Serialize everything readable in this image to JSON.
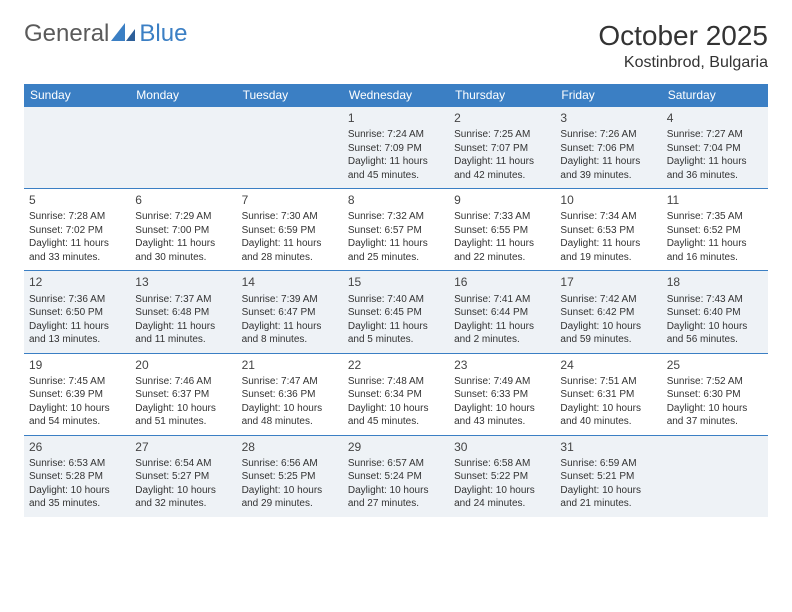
{
  "brand": {
    "text_general": "General",
    "text_blue": "Blue",
    "colors": {
      "general": "#5a5a5a",
      "blue": "#3b7fc4"
    }
  },
  "title": "October 2025",
  "location": "Kostinbrod, Bulgaria",
  "styling": {
    "header_bg": "#3b7fc4",
    "header_text": "#ffffff",
    "alt_row_bg": "#eef2f6",
    "cell_border": "#3b7fc4",
    "body_text": "#333333",
    "title_fontsize": 28,
    "subtitle_fontsize": 16,
    "day_header_fontsize": 12,
    "cell_fontsize": 10,
    "daynum_fontsize": 12
  },
  "day_headers": [
    "Sunday",
    "Monday",
    "Tuesday",
    "Wednesday",
    "Thursday",
    "Friday",
    "Saturday"
  ],
  "weeks": [
    [
      null,
      null,
      null,
      {
        "n": "1",
        "sr": "Sunrise: 7:24 AM",
        "ss": "Sunset: 7:09 PM",
        "dl1": "Daylight: 11 hours",
        "dl2": "and 45 minutes."
      },
      {
        "n": "2",
        "sr": "Sunrise: 7:25 AM",
        "ss": "Sunset: 7:07 PM",
        "dl1": "Daylight: 11 hours",
        "dl2": "and 42 minutes."
      },
      {
        "n": "3",
        "sr": "Sunrise: 7:26 AM",
        "ss": "Sunset: 7:06 PM",
        "dl1": "Daylight: 11 hours",
        "dl2": "and 39 minutes."
      },
      {
        "n": "4",
        "sr": "Sunrise: 7:27 AM",
        "ss": "Sunset: 7:04 PM",
        "dl1": "Daylight: 11 hours",
        "dl2": "and 36 minutes."
      }
    ],
    [
      {
        "n": "5",
        "sr": "Sunrise: 7:28 AM",
        "ss": "Sunset: 7:02 PM",
        "dl1": "Daylight: 11 hours",
        "dl2": "and 33 minutes."
      },
      {
        "n": "6",
        "sr": "Sunrise: 7:29 AM",
        "ss": "Sunset: 7:00 PM",
        "dl1": "Daylight: 11 hours",
        "dl2": "and 30 minutes."
      },
      {
        "n": "7",
        "sr": "Sunrise: 7:30 AM",
        "ss": "Sunset: 6:59 PM",
        "dl1": "Daylight: 11 hours",
        "dl2": "and 28 minutes."
      },
      {
        "n": "8",
        "sr": "Sunrise: 7:32 AM",
        "ss": "Sunset: 6:57 PM",
        "dl1": "Daylight: 11 hours",
        "dl2": "and 25 minutes."
      },
      {
        "n": "9",
        "sr": "Sunrise: 7:33 AM",
        "ss": "Sunset: 6:55 PM",
        "dl1": "Daylight: 11 hours",
        "dl2": "and 22 minutes."
      },
      {
        "n": "10",
        "sr": "Sunrise: 7:34 AM",
        "ss": "Sunset: 6:53 PM",
        "dl1": "Daylight: 11 hours",
        "dl2": "and 19 minutes."
      },
      {
        "n": "11",
        "sr": "Sunrise: 7:35 AM",
        "ss": "Sunset: 6:52 PM",
        "dl1": "Daylight: 11 hours",
        "dl2": "and 16 minutes."
      }
    ],
    [
      {
        "n": "12",
        "sr": "Sunrise: 7:36 AM",
        "ss": "Sunset: 6:50 PM",
        "dl1": "Daylight: 11 hours",
        "dl2": "and 13 minutes."
      },
      {
        "n": "13",
        "sr": "Sunrise: 7:37 AM",
        "ss": "Sunset: 6:48 PM",
        "dl1": "Daylight: 11 hours",
        "dl2": "and 11 minutes."
      },
      {
        "n": "14",
        "sr": "Sunrise: 7:39 AM",
        "ss": "Sunset: 6:47 PM",
        "dl1": "Daylight: 11 hours",
        "dl2": "and 8 minutes."
      },
      {
        "n": "15",
        "sr": "Sunrise: 7:40 AM",
        "ss": "Sunset: 6:45 PM",
        "dl1": "Daylight: 11 hours",
        "dl2": "and 5 minutes."
      },
      {
        "n": "16",
        "sr": "Sunrise: 7:41 AM",
        "ss": "Sunset: 6:44 PM",
        "dl1": "Daylight: 11 hours",
        "dl2": "and 2 minutes."
      },
      {
        "n": "17",
        "sr": "Sunrise: 7:42 AM",
        "ss": "Sunset: 6:42 PM",
        "dl1": "Daylight: 10 hours",
        "dl2": "and 59 minutes."
      },
      {
        "n": "18",
        "sr": "Sunrise: 7:43 AM",
        "ss": "Sunset: 6:40 PM",
        "dl1": "Daylight: 10 hours",
        "dl2": "and 56 minutes."
      }
    ],
    [
      {
        "n": "19",
        "sr": "Sunrise: 7:45 AM",
        "ss": "Sunset: 6:39 PM",
        "dl1": "Daylight: 10 hours",
        "dl2": "and 54 minutes."
      },
      {
        "n": "20",
        "sr": "Sunrise: 7:46 AM",
        "ss": "Sunset: 6:37 PM",
        "dl1": "Daylight: 10 hours",
        "dl2": "and 51 minutes."
      },
      {
        "n": "21",
        "sr": "Sunrise: 7:47 AM",
        "ss": "Sunset: 6:36 PM",
        "dl1": "Daylight: 10 hours",
        "dl2": "and 48 minutes."
      },
      {
        "n": "22",
        "sr": "Sunrise: 7:48 AM",
        "ss": "Sunset: 6:34 PM",
        "dl1": "Daylight: 10 hours",
        "dl2": "and 45 minutes."
      },
      {
        "n": "23",
        "sr": "Sunrise: 7:49 AM",
        "ss": "Sunset: 6:33 PM",
        "dl1": "Daylight: 10 hours",
        "dl2": "and 43 minutes."
      },
      {
        "n": "24",
        "sr": "Sunrise: 7:51 AM",
        "ss": "Sunset: 6:31 PM",
        "dl1": "Daylight: 10 hours",
        "dl2": "and 40 minutes."
      },
      {
        "n": "25",
        "sr": "Sunrise: 7:52 AM",
        "ss": "Sunset: 6:30 PM",
        "dl1": "Daylight: 10 hours",
        "dl2": "and 37 minutes."
      }
    ],
    [
      {
        "n": "26",
        "sr": "Sunrise: 6:53 AM",
        "ss": "Sunset: 5:28 PM",
        "dl1": "Daylight: 10 hours",
        "dl2": "and 35 minutes."
      },
      {
        "n": "27",
        "sr": "Sunrise: 6:54 AM",
        "ss": "Sunset: 5:27 PM",
        "dl1": "Daylight: 10 hours",
        "dl2": "and 32 minutes."
      },
      {
        "n": "28",
        "sr": "Sunrise: 6:56 AM",
        "ss": "Sunset: 5:25 PM",
        "dl1": "Daylight: 10 hours",
        "dl2": "and 29 minutes."
      },
      {
        "n": "29",
        "sr": "Sunrise: 6:57 AM",
        "ss": "Sunset: 5:24 PM",
        "dl1": "Daylight: 10 hours",
        "dl2": "and 27 minutes."
      },
      {
        "n": "30",
        "sr": "Sunrise: 6:58 AM",
        "ss": "Sunset: 5:22 PM",
        "dl1": "Daylight: 10 hours",
        "dl2": "and 24 minutes."
      },
      {
        "n": "31",
        "sr": "Sunrise: 6:59 AM",
        "ss": "Sunset: 5:21 PM",
        "dl1": "Daylight: 10 hours",
        "dl2": "and 21 minutes."
      },
      null
    ]
  ]
}
